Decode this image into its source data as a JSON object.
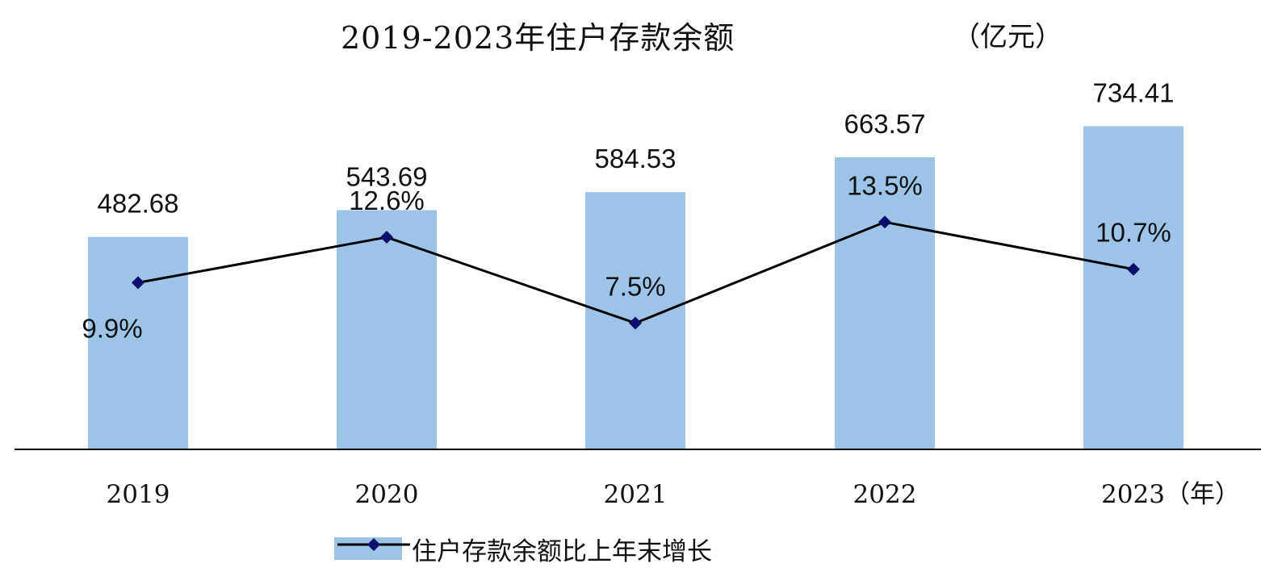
{
  "chart_data": {
    "type": "bar",
    "title": "2019-2023年住户存款余额",
    "unit": "（亿元）",
    "categories": [
      "2019",
      "2020",
      "2021",
      "2022",
      "2023"
    ],
    "x_unit_suffix": "（年）",
    "series": [
      {
        "name": "住户存款余额",
        "type": "bar",
        "color": "#9dc3e6",
        "values": [
          482.68,
          543.69,
          584.53,
          663.57,
          734.41
        ],
        "labels": [
          "482.68",
          "543.69",
          "584.53",
          "663.57",
          "734.41"
        ]
      },
      {
        "name": "比上年末增长",
        "type": "line",
        "color": "#0d0d6b",
        "values": [
          9.9,
          12.6,
          7.5,
          13.5,
          10.7
        ],
        "labels": [
          "9.9%",
          "12.6%",
          "7.5%",
          "13.5%",
          "10.7%"
        ]
      }
    ],
    "y_left_range": [
      0,
      880
    ],
    "y_right_range": [
      0,
      23
    ],
    "grid": false,
    "legend_position": "bottom"
  }
}
